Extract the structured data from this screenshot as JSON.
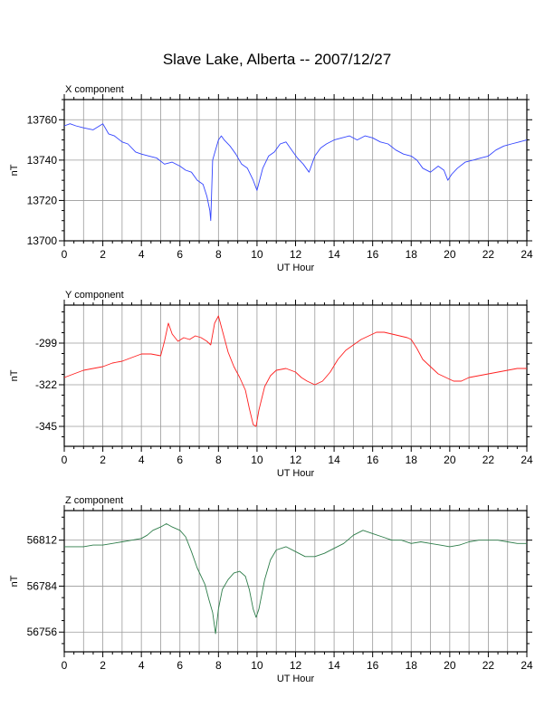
{
  "title": "Slave Lake, Alberta -- 2007/12/27",
  "chart_data": [
    {
      "type": "line",
      "title": "X component",
      "xlabel": "UT Hour",
      "ylabel": "nT",
      "xlim": [
        0,
        24
      ],
      "ylim": [
        13700,
        13770
      ],
      "xticks": [
        0,
        2,
        4,
        6,
        8,
        10,
        12,
        14,
        16,
        18,
        20,
        22,
        24
      ],
      "yticks": [
        13700,
        13720,
        13740,
        13760
      ],
      "grid": true,
      "series": [
        {
          "color": "#3344ff",
          "x": [
            0,
            0.3,
            0.6,
            1.0,
            1.5,
            2.0,
            2.3,
            2.6,
            3.0,
            3.3,
            3.7,
            4.0,
            4.4,
            4.8,
            5.2,
            5.6,
            6.0,
            6.3,
            6.6,
            6.9,
            7.2,
            7.4,
            7.55,
            7.6,
            7.7,
            7.85,
            8.0,
            8.15,
            8.3,
            8.6,
            8.9,
            9.2,
            9.5,
            9.8,
            10.0,
            10.3,
            10.6,
            10.9,
            11.2,
            11.5,
            11.8,
            12.1,
            12.4,
            12.7,
            13.0,
            13.3,
            13.6,
            14.0,
            14.4,
            14.8,
            15.2,
            15.6,
            16.0,
            16.4,
            16.8,
            17.2,
            17.6,
            18.0,
            18.3,
            18.6,
            19.0,
            19.4,
            19.7,
            19.9,
            20.1,
            20.4,
            20.8,
            21.2,
            21.6,
            22.0,
            22.4,
            22.8,
            23.2,
            23.6,
            24.0
          ],
          "values": [
            13757,
            13758,
            13757,
            13756,
            13755,
            13758,
            13753,
            13752,
            13749,
            13748,
            13744,
            13743,
            13742,
            13741,
            13738,
            13739,
            13737,
            13735,
            13734,
            13730,
            13728,
            13722,
            13715,
            13710,
            13740,
            13745,
            13750,
            13752,
            13750,
            13747,
            13743,
            13738,
            13736,
            13730,
            13725,
            13736,
            13742,
            13744,
            13748,
            13749,
            13745,
            13741,
            13738,
            13734,
            13742,
            13746,
            13748,
            13750,
            13751,
            13752,
            13750,
            13752,
            13751,
            13749,
            13748,
            13745,
            13743,
            13742,
            13740,
            13736,
            13734,
            13737,
            13735,
            13730,
            13733,
            13736,
            13739,
            13740,
            13741,
            13742,
            13745,
            13747,
            13748,
            13749,
            13750
          ]
        }
      ]
    },
    {
      "type": "line",
      "title": "Y component",
      "xlabel": "UT Hour",
      "ylabel": "nT",
      "xlim": [
        0,
        24
      ],
      "ylim": [
        -356,
        -278
      ],
      "xticks": [
        0,
        2,
        4,
        6,
        8,
        10,
        12,
        14,
        16,
        18,
        20,
        22,
        24
      ],
      "yticks": [
        -345,
        -322,
        -299
      ],
      "grid": true,
      "series": [
        {
          "color": "#ff2020",
          "x": [
            0,
            0.5,
            1.0,
            1.5,
            2.0,
            2.5,
            3.0,
            3.5,
            4.0,
            4.5,
            5.0,
            5.2,
            5.4,
            5.6,
            5.9,
            6.2,
            6.5,
            6.8,
            7.1,
            7.4,
            7.6,
            7.8,
            8.0,
            8.2,
            8.5,
            8.8,
            9.1,
            9.4,
            9.6,
            9.8,
            9.95,
            10.1,
            10.4,
            10.7,
            11.0,
            11.5,
            12.0,
            12.3,
            12.6,
            13.0,
            13.4,
            13.8,
            14.2,
            14.6,
            15.0,
            15.4,
            15.8,
            16.2,
            16.6,
            17.0,
            17.4,
            17.8,
            18.0,
            18.3,
            18.6,
            19.0,
            19.4,
            19.8,
            20.2,
            20.6,
            21.0,
            21.5,
            22.0,
            22.5,
            23.0,
            23.5,
            24.0
          ],
          "values": [
            -318,
            -316,
            -314,
            -313,
            -312,
            -310,
            -309,
            -307,
            -305,
            -305,
            -306,
            -298,
            -288,
            -294,
            -298,
            -296,
            -297,
            -295,
            -296,
            -298,
            -300,
            -288,
            -284,
            -292,
            -304,
            -312,
            -318,
            -325,
            -335,
            -344,
            -345,
            -336,
            -323,
            -317,
            -314,
            -313,
            -315,
            -318,
            -320,
            -322,
            -320,
            -315,
            -308,
            -303,
            -300,
            -297,
            -295,
            -293,
            -293,
            -294,
            -295,
            -296,
            -297,
            -302,
            -308,
            -312,
            -316,
            -318,
            -320,
            -320,
            -318,
            -317,
            -316,
            -315,
            -314,
            -313,
            -313
          ]
        }
      ]
    },
    {
      "type": "line",
      "title": "Z component",
      "xlabel": "UT Hour",
      "ylabel": "nT",
      "xlim": [
        0,
        24
      ],
      "ylim": [
        56744,
        56830
      ],
      "xticks": [
        0,
        2,
        4,
        6,
        8,
        10,
        12,
        14,
        16,
        18,
        20,
        22,
        24
      ],
      "yticks": [
        56756,
        56784,
        56812
      ],
      "grid": true,
      "series": [
        {
          "color": "#2e7d4a",
          "x": [
            0,
            0.5,
            1.0,
            1.5,
            2.0,
            2.5,
            3.0,
            3.5,
            4.0,
            4.3,
            4.6,
            5.0,
            5.3,
            5.6,
            6.0,
            6.3,
            6.6,
            6.9,
            7.1,
            7.3,
            7.5,
            7.7,
            7.85,
            8.0,
            8.2,
            8.5,
            8.8,
            9.1,
            9.4,
            9.6,
            9.8,
            9.95,
            10.1,
            10.4,
            10.7,
            11.0,
            11.5,
            12.0,
            12.5,
            13.0,
            13.5,
            14.0,
            14.5,
            15.0,
            15.5,
            16.0,
            16.5,
            17.0,
            17.5,
            18.0,
            18.5,
            19.0,
            19.5,
            20.0,
            20.5,
            21.0,
            21.5,
            22.0,
            22.5,
            23.0,
            23.5,
            24.0
          ],
          "values": [
            56808,
            56808,
            56808,
            56809,
            56809,
            56810,
            56811,
            56812,
            56813,
            56815,
            56818,
            56820,
            56822,
            56820,
            56818,
            56814,
            56805,
            56795,
            56790,
            56785,
            56776,
            56768,
            56755,
            56770,
            56782,
            56788,
            56792,
            56793,
            56790,
            56782,
            56770,
            56765,
            56770,
            56788,
            56800,
            56806,
            56808,
            56805,
            56802,
            56802,
            56804,
            56807,
            56810,
            56815,
            56818,
            56816,
            56814,
            56812,
            56812,
            56810,
            56811,
            56810,
            56809,
            56808,
            56809,
            56811,
            56812,
            56812,
            56812,
            56811,
            56810,
            56810
          ]
        }
      ]
    }
  ]
}
